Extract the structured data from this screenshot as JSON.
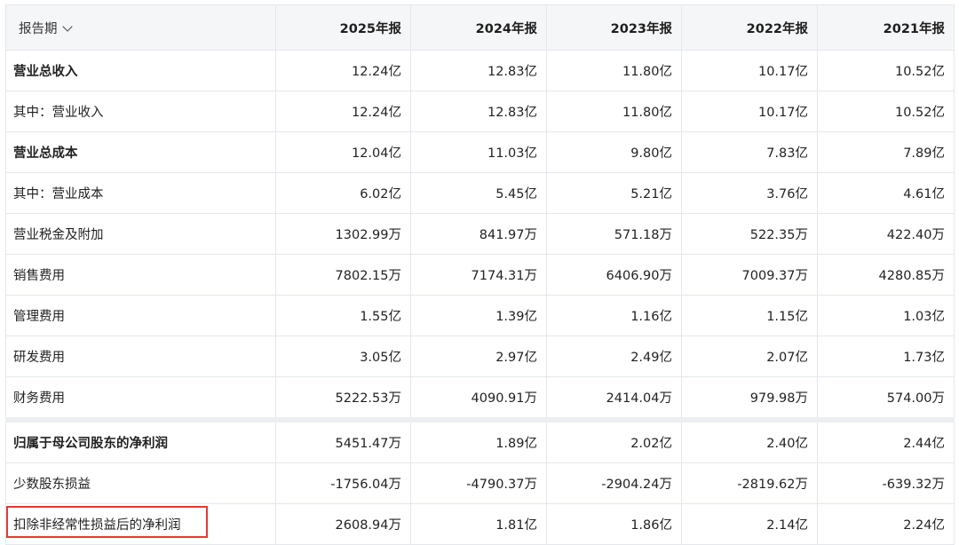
{
  "header": {
    "period_label": "报告期",
    "columns": [
      "2025年报",
      "2024年报",
      "2023年报",
      "2022年报",
      "2021年报"
    ]
  },
  "rows": [
    {
      "label": "营业总收入",
      "bold": true,
      "values": [
        "12.24亿",
        "12.83亿",
        "11.80亿",
        "10.17亿",
        "10.52亿"
      ]
    },
    {
      "label": "其中：营业收入",
      "bold": false,
      "values": [
        "12.24亿",
        "12.83亿",
        "11.80亿",
        "10.17亿",
        "10.52亿"
      ]
    },
    {
      "label": "营业总成本",
      "bold": true,
      "values": [
        "12.04亿",
        "11.03亿",
        "9.80亿",
        "7.83亿",
        "7.89亿"
      ]
    },
    {
      "label": "其中：营业成本",
      "bold": false,
      "values": [
        "6.02亿",
        "5.45亿",
        "5.21亿",
        "3.76亿",
        "4.61亿"
      ]
    },
    {
      "label": "营业税金及附加",
      "bold": false,
      "values": [
        "1302.99万",
        "841.97万",
        "571.18万",
        "522.35万",
        "422.40万"
      ]
    },
    {
      "label": "销售费用",
      "bold": false,
      "values": [
        "7802.15万",
        "7174.31万",
        "6406.90万",
        "7009.37万",
        "4280.85万"
      ]
    },
    {
      "label": "管理费用",
      "bold": false,
      "values": [
        "1.55亿",
        "1.39亿",
        "1.16亿",
        "1.15亿",
        "1.03亿"
      ]
    },
    {
      "label": "研发费用",
      "bold": false,
      "values": [
        "3.05亿",
        "2.97亿",
        "2.49亿",
        "2.07亿",
        "1.73亿"
      ]
    },
    {
      "label": "财务费用",
      "bold": false,
      "values": [
        "5222.53万",
        "4090.91万",
        "2414.04万",
        "979.98万",
        "574.00万"
      ]
    },
    {
      "label": "归属于母公司股东的净利润",
      "bold": true,
      "gap": true,
      "values": [
        "5451.47万",
        "1.89亿",
        "2.02亿",
        "2.40亿",
        "2.44亿"
      ]
    },
    {
      "label": "少数股东损益",
      "bold": false,
      "values": [
        "-1756.04万",
        "-4790.37万",
        "-2904.24万",
        "-2819.62万",
        "-639.32万"
      ]
    },
    {
      "label": "扣除非经常性损益后的净利润",
      "bold": false,
      "highlighted": true,
      "values": [
        "2608.94万",
        "1.81亿",
        "1.86亿",
        "2.14亿",
        "2.24亿"
      ]
    }
  ],
  "colors": {
    "header_bg": "#f5f6f8",
    "border": "#e4e7ed",
    "highlight_border": "#e53935"
  },
  "icons": {
    "period_dropdown": "chevron-down-icon"
  }
}
